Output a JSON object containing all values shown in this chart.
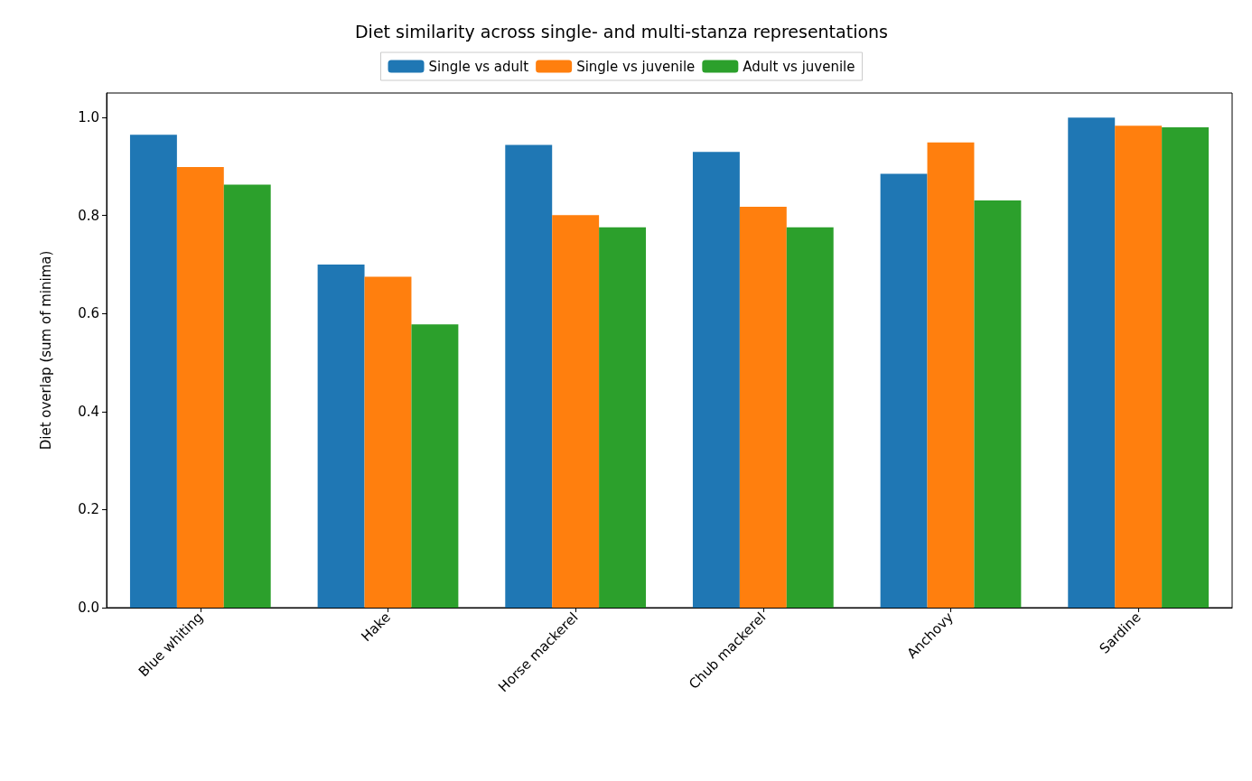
{
  "chart_data": {
    "type": "bar",
    "title": "Diet similarity across single- and multi-stanza representations",
    "ylabel": "Diet overlap (sum of minima)",
    "categories": [
      "Blue whiting",
      "Hake",
      "Horse mackerel",
      "Chub mackerel",
      "Anchovy",
      "Sardine"
    ],
    "series": [
      {
        "name": "Single vs adult",
        "color": "#1f77b4",
        "values": [
          0.965,
          0.7,
          0.944,
          0.93,
          0.885,
          1.0
        ]
      },
      {
        "name": "Single vs juvenile",
        "color": "#ff7f0e",
        "values": [
          0.899,
          0.675,
          0.801,
          0.818,
          0.949,
          0.983
        ]
      },
      {
        "name": "Adult vs juvenile",
        "color": "#2ca02c",
        "values": [
          0.863,
          0.578,
          0.776,
          0.776,
          0.831,
          0.98
        ]
      }
    ],
    "ylim": [
      0,
      1.05
    ],
    "yticks": [
      {
        "value": 0,
        "label": "0.0"
      },
      {
        "value": 0.2,
        "label": "0.2"
      },
      {
        "value": 0.4,
        "label": "0.4"
      },
      {
        "value": 0.6,
        "label": "0.6"
      },
      {
        "value": 0.8,
        "label": "0.8"
      },
      {
        "value": 1.0,
        "label": "1.0"
      }
    ],
    "grid": false,
    "legend": "top"
  }
}
